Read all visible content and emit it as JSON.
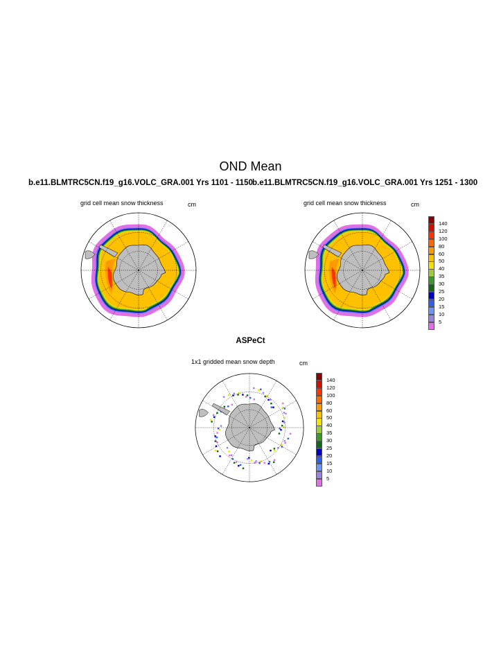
{
  "title": "OND Mean",
  "panels": [
    {
      "case": "b.e11.BLMTRC5CN.f19_g16.VOLC_GRA.001  Yrs 1101 - 1150",
      "subtitle": "grid cell mean snow thickness",
      "units": "cm"
    },
    {
      "case": "b.e11.BLMTRC5CN.f19_g16.VOLC_GRA.001  Yrs 1251 - 1300",
      "subtitle": "grid cell mean snow thickness",
      "units": "cm"
    }
  ],
  "obs": {
    "title": "ASPeCt",
    "subtitle": "1x1 gridded mean snow depth",
    "units": "cm"
  },
  "legend": {
    "labels": [
      "140",
      "120",
      "100",
      "80",
      "60",
      "50",
      "40",
      "35",
      "30",
      "25",
      "20",
      "15",
      "10",
      "5"
    ],
    "colors": [
      "#8b0000",
      "#cc1100",
      "#ff3300",
      "#ff6a00",
      "#ff9900",
      "#ffc000",
      "#f2e200",
      "#9ccc3a",
      "#3c9a28",
      "#0d6a16",
      "#0000c8",
      "#2f5ff0",
      "#6e96f8",
      "#9b80e6",
      "#e070e6"
    ]
  },
  "chart_data": {
    "type": "heatmap",
    "projection": "south polar stereographic",
    "variable": "snow thickness on sea ice",
    "units": "cm",
    "contour_levels": [
      5,
      10,
      15,
      20,
      25,
      30,
      35,
      40,
      50,
      60,
      80,
      100,
      120,
      140
    ]
  }
}
